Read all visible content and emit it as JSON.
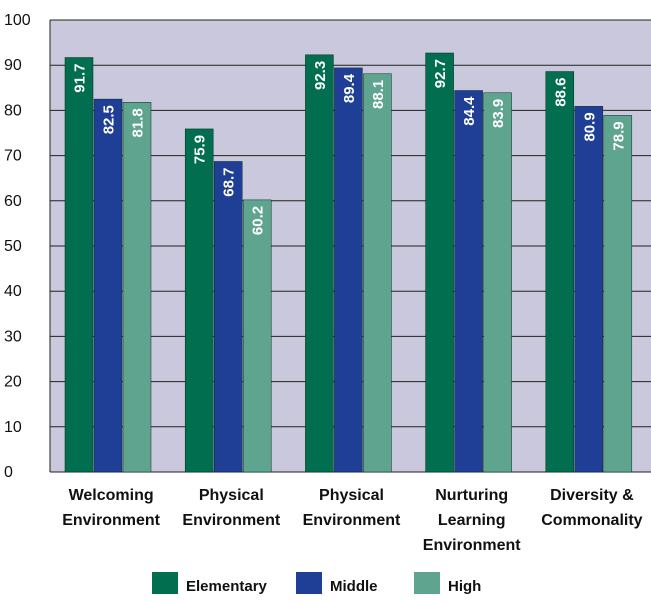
{
  "chart_data": {
    "type": "bar",
    "categories": [
      [
        "Welcoming",
        "Environment"
      ],
      [
        "Physical",
        "Environment"
      ],
      [
        "Physical",
        "Environment"
      ],
      [
        "Nurturing",
        "Learning",
        "Environment"
      ],
      [
        "Diversity &",
        "Commonality"
      ]
    ],
    "series": [
      {
        "name": "Elementary",
        "color": "#006e4f",
        "values": [
          91.7,
          75.9,
          92.3,
          92.7,
          88.6
        ]
      },
      {
        "name": "Middle",
        "color": "#1f3e95",
        "values": [
          82.5,
          68.7,
          89.4,
          84.4,
          80.9
        ]
      },
      {
        "name": "High",
        "color": "#5fa48f",
        "values": [
          81.8,
          60.2,
          88.1,
          83.9,
          78.9
        ]
      }
    ],
    "value_labels": [
      [
        "91.7",
        "75.9",
        "92.3",
        "92.7",
        "88.6"
      ],
      [
        "82.5",
        "68.7",
        "89.4",
        "84.4",
        "80.9"
      ],
      [
        "81.8",
        "60.2",
        "88.1",
        "83.9",
        "78.9"
      ]
    ],
    "y_ticks": [
      "0",
      "10",
      "20",
      "30",
      "40",
      "50",
      "60",
      "70",
      "80",
      "90",
      "100"
    ],
    "ylim": [
      0,
      100
    ],
    "grid": true,
    "plot_background": "#c9c8dc",
    "legend_position": "bottom",
    "title": "",
    "xlabel": "",
    "ylabel": ""
  }
}
